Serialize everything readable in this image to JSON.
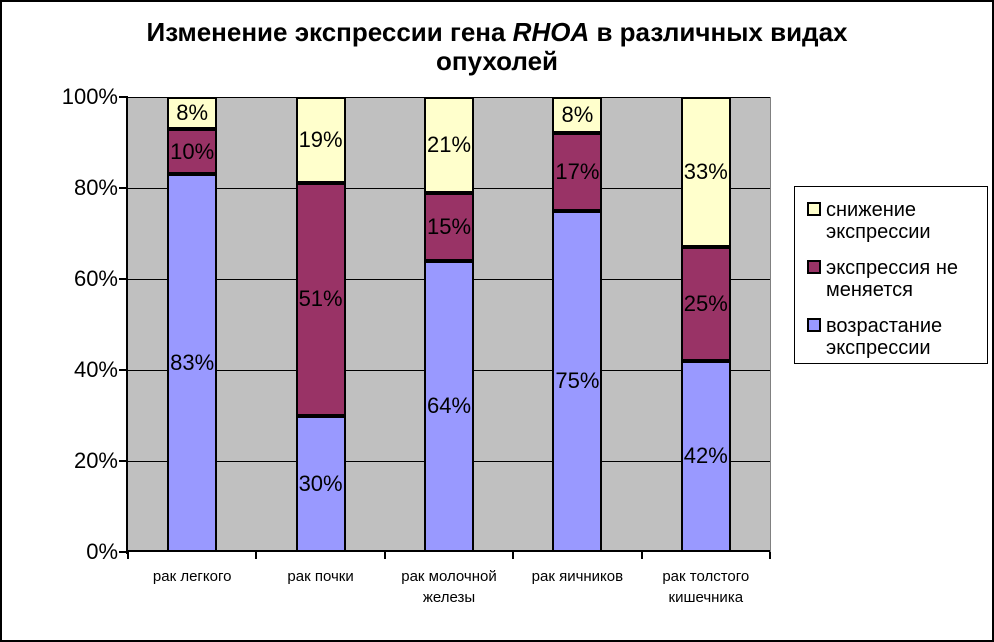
{
  "chart_data": {
    "type": "bar",
    "variant": "stacked-100-percent",
    "title": {
      "pre": "Изменение экспрессии гена ",
      "gene": "RHOA",
      "post": " в различных видах опухолей",
      "full": "Изменение экспрессии гена RHOA в различных видах опухолей"
    },
    "categories": [
      "рак легкого",
      "рак почки",
      "рак молочной железы",
      "рак яичников",
      "рак толстого кишечника"
    ],
    "series": [
      {
        "name": "возрастание экспрессии",
        "color": "#9999FF",
        "values": [
          83,
          30,
          64,
          75,
          42
        ]
      },
      {
        "name": "экспрессия не меняется",
        "color": "#993366",
        "values": [
          10,
          51,
          15,
          17,
          25
        ]
      },
      {
        "name": "снижение экспрессии",
        "color": "#FFFFCC",
        "values": [
          8,
          19,
          21,
          8,
          33
        ]
      }
    ],
    "data_label_suffix": "%",
    "y_ticks": [
      "0%",
      "20%",
      "40%",
      "60%",
      "80%",
      "100%"
    ],
    "ylim": [
      0,
      100
    ],
    "grid": true,
    "legend_position": "right",
    "legend": [
      {
        "label": "снижение экспрессии",
        "color": "#FFFFCC"
      },
      {
        "label": "экспрессия не меняется",
        "color": "#993366"
      },
      {
        "label": "возрастание экспрессии",
        "color": "#9999FF"
      }
    ],
    "colors": {
      "plot_bg": "#C0C0C0",
      "gridline": "#000000",
      "axis": "#000000",
      "text": "#000000",
      "chart_bg": "#FFFFFF",
      "chart_border": "#000000"
    }
  }
}
